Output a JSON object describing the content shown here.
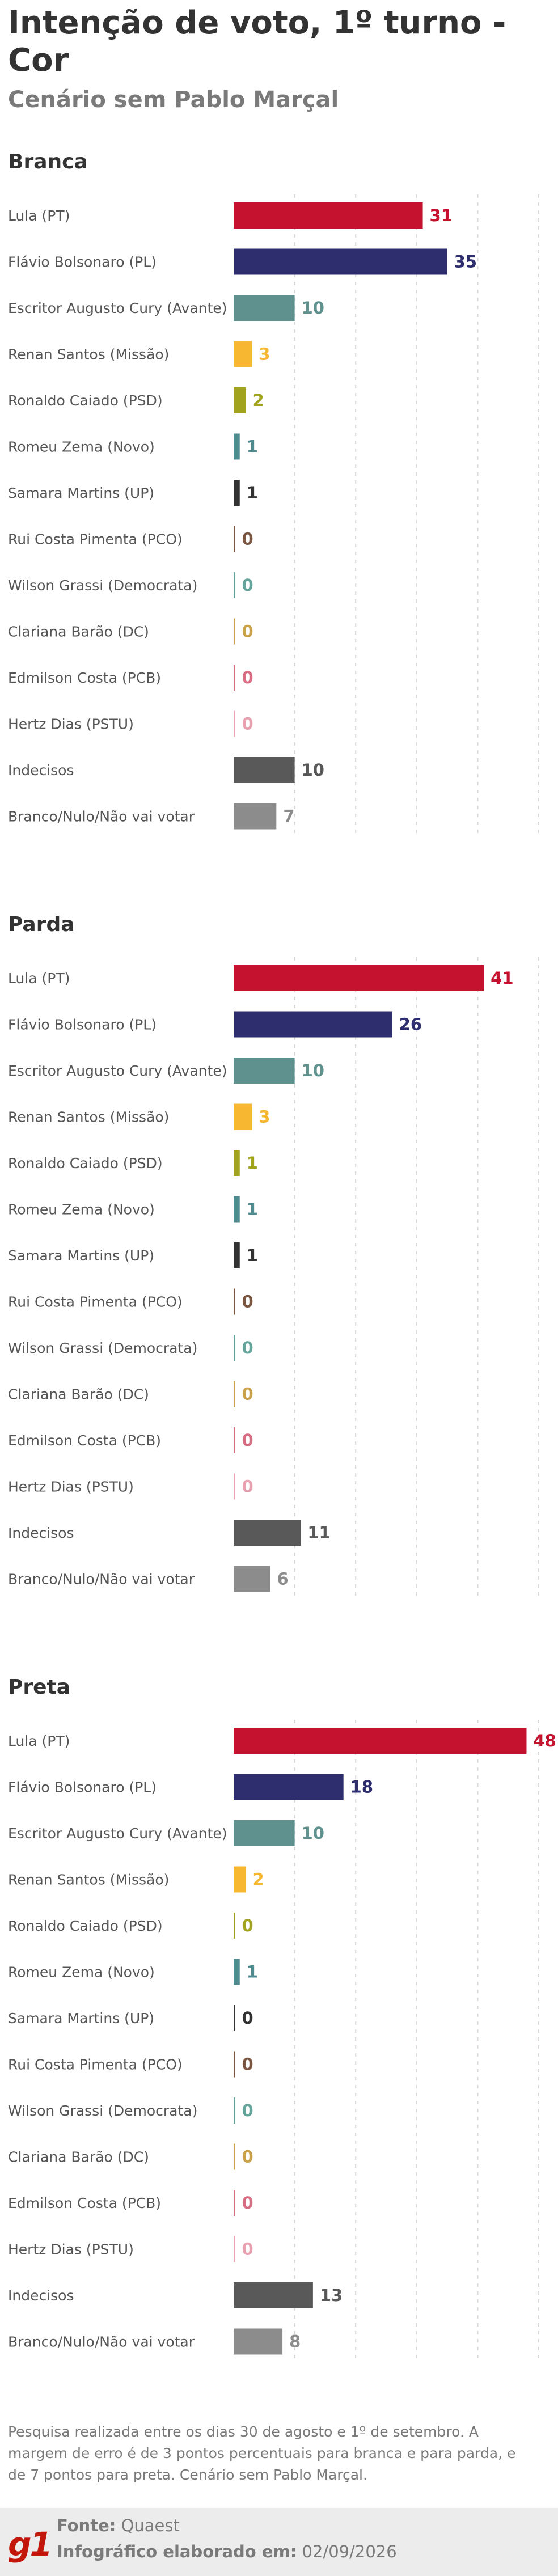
{
  "header": {
    "title": "Intenção de voto, 1º turno - Cor",
    "subtitle": "Cenário sem Pablo Marçal"
  },
  "colors": {
    "lula": "#c4122f",
    "flavio": "#2e2e6e",
    "cury": "#5f918e",
    "renan": "#f7b731",
    "caiado": "#a0a31b",
    "zema": "#4f8a8f",
    "samara": "#333333",
    "rui": "#7a5540",
    "grassi": "#64a49a",
    "clariana": "#c9a14a",
    "edmilson": "#d86c82",
    "hertz": "#e7a0b0",
    "indecisos": "#595959",
    "branco": "#8c8c8c"
  },
  "chart_data": [
    {
      "type": "bar",
      "title": "Branca",
      "categories": [
        "Lula (PT)",
        "Flávio Bolsonaro (PL)",
        "Escritor Augusto Cury (Avante)",
        "Renan Santos (Missão)",
        "Ronaldo Caiado (PSD)",
        "Romeu Zema (Novo)",
        "Samara Martins (UP)",
        "Rui Costa Pimenta (PCO)",
        "Wilson Grassi (Democrata)",
        "Clariana Barão (DC)",
        "Edmilson Costa (PCB)",
        "Hertz Dias (PSTU)",
        "Indecisos",
        "Branco/Nulo/Não vai votar"
      ],
      "values": [
        31,
        35,
        10,
        3,
        2,
        1,
        1,
        0,
        0,
        0,
        0,
        0,
        10,
        7
      ],
      "xlim": [
        0,
        50
      ],
      "grid": true
    },
    {
      "type": "bar",
      "title": "Parda",
      "categories": [
        "Lula (PT)",
        "Flávio Bolsonaro (PL)",
        "Escritor Augusto Cury (Avante)",
        "Renan Santos (Missão)",
        "Ronaldo Caiado (PSD)",
        "Romeu Zema (Novo)",
        "Samara Martins (UP)",
        "Rui Costa Pimenta (PCO)",
        "Wilson Grassi (Democrata)",
        "Clariana Barão (DC)",
        "Edmilson Costa (PCB)",
        "Hertz Dias (PSTU)",
        "Indecisos",
        "Branco/Nulo/Não vai votar"
      ],
      "values": [
        41,
        26,
        10,
        3,
        1,
        1,
        1,
        0,
        0,
        0,
        0,
        0,
        11,
        6
      ],
      "xlim": [
        0,
        50
      ],
      "grid": true
    },
    {
      "type": "bar",
      "title": "Preta",
      "categories": [
        "Lula (PT)",
        "Flávio Bolsonaro (PL)",
        "Escritor Augusto Cury (Avante)",
        "Renan Santos (Missão)",
        "Ronaldo Caiado (PSD)",
        "Romeu Zema (Novo)",
        "Samara Martins (UP)",
        "Rui Costa Pimenta (PCO)",
        "Wilson Grassi (Democrata)",
        "Clariana Barão (DC)",
        "Edmilson Costa (PCB)",
        "Hertz Dias (PSTU)",
        "Indecisos",
        "Branco/Nulo/Não vai votar"
      ],
      "values": [
        48,
        18,
        10,
        2,
        0,
        1,
        0,
        0,
        0,
        0,
        0,
        0,
        13,
        8
      ],
      "xlim": [
        0,
        50
      ],
      "grid": true
    }
  ],
  "footnote": "Pesquisa realizada entre os dias 30 de agosto e 1º de setembro. A margem de erro é de 3 pontos percentuais para branca e para parda, e de 7 pontos para preta. Cenário sem Pablo Marçal.",
  "footer": {
    "logo": "g1",
    "source_label": "Fonte:",
    "source_value": "Quaest",
    "credit_label": "Infográfico elaborado em:",
    "credit_value": "02/09/2026"
  }
}
